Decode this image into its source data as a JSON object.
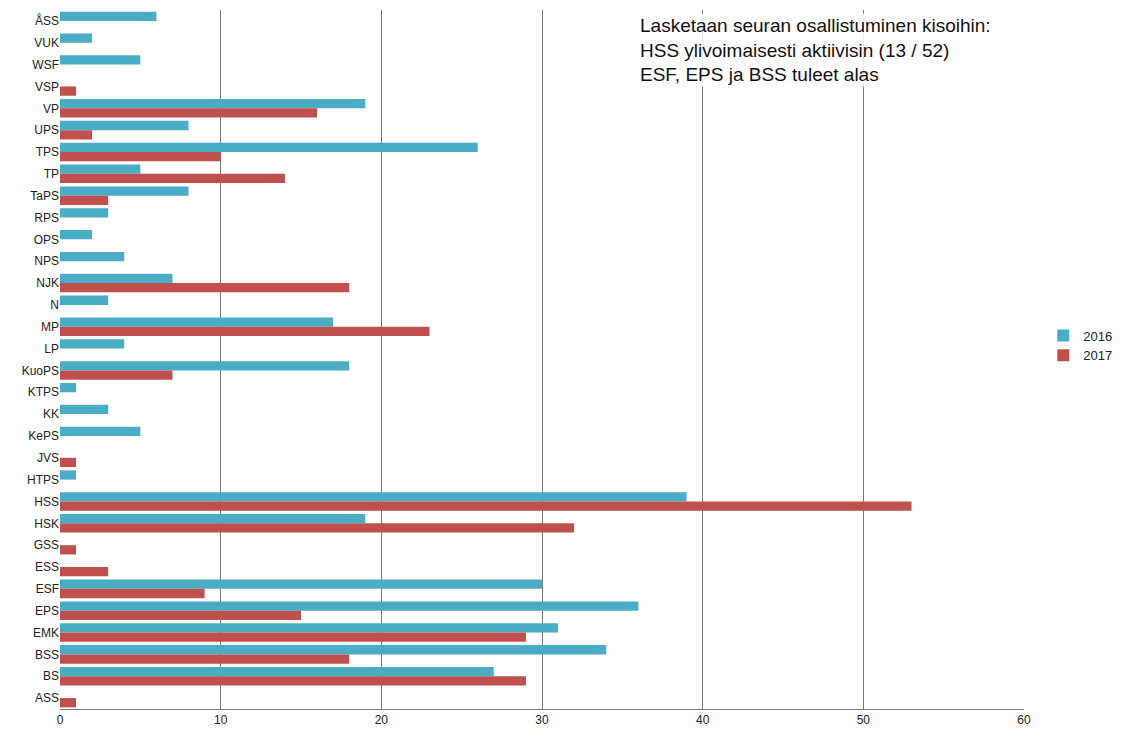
{
  "chart_data": {
    "type": "bar",
    "orientation": "horizontal",
    "annotation": [
      "Lasketaan seuran osallistuminen kisoihin:",
      "HSS ylivoimaisesti aktiivisin (13 / 52)",
      "ESF, EPS ja BSS tuleet alas"
    ],
    "categories": [
      "ÅSS",
      "VUK",
      "WSF",
      "VSP",
      "VP",
      "UPS",
      "TPS",
      "TP",
      "TaPS",
      "RPS",
      "OPS",
      "NPS",
      "NJK",
      "N",
      "MP",
      "LP",
      "KuoPS",
      "KTPS",
      "KK",
      "KePS",
      "JVS",
      "HTPS",
      "HSS",
      "HSK",
      "GSS",
      "ESS",
      "ESF",
      "EPS",
      "EMK",
      "BSS",
      "BS",
      "ASS"
    ],
    "series": [
      {
        "name": "2016",
        "color": "#4BACC6",
        "values": [
          6,
          2,
          5,
          0,
          19,
          8,
          26,
          5,
          8,
          3,
          2,
          4,
          7,
          3,
          17,
          4,
          18,
          1,
          3,
          5,
          0,
          1,
          39,
          19,
          0,
          0,
          30,
          36,
          31,
          34,
          27,
          0
        ]
      },
      {
        "name": "2017",
        "color": "#C0504D",
        "values": [
          0,
          0,
          0,
          1,
          16,
          2,
          10,
          14,
          3,
          0,
          0,
          0,
          18,
          0,
          23,
          0,
          7,
          0,
          0,
          0,
          1,
          0,
          53,
          32,
          1,
          3,
          9,
          15,
          29,
          18,
          29,
          1
        ]
      }
    ],
    "xlim": [
      0,
      60
    ],
    "xticks": [
      0,
      10,
      20,
      30,
      40,
      50,
      60
    ],
    "grid": true,
    "legend": "right"
  }
}
